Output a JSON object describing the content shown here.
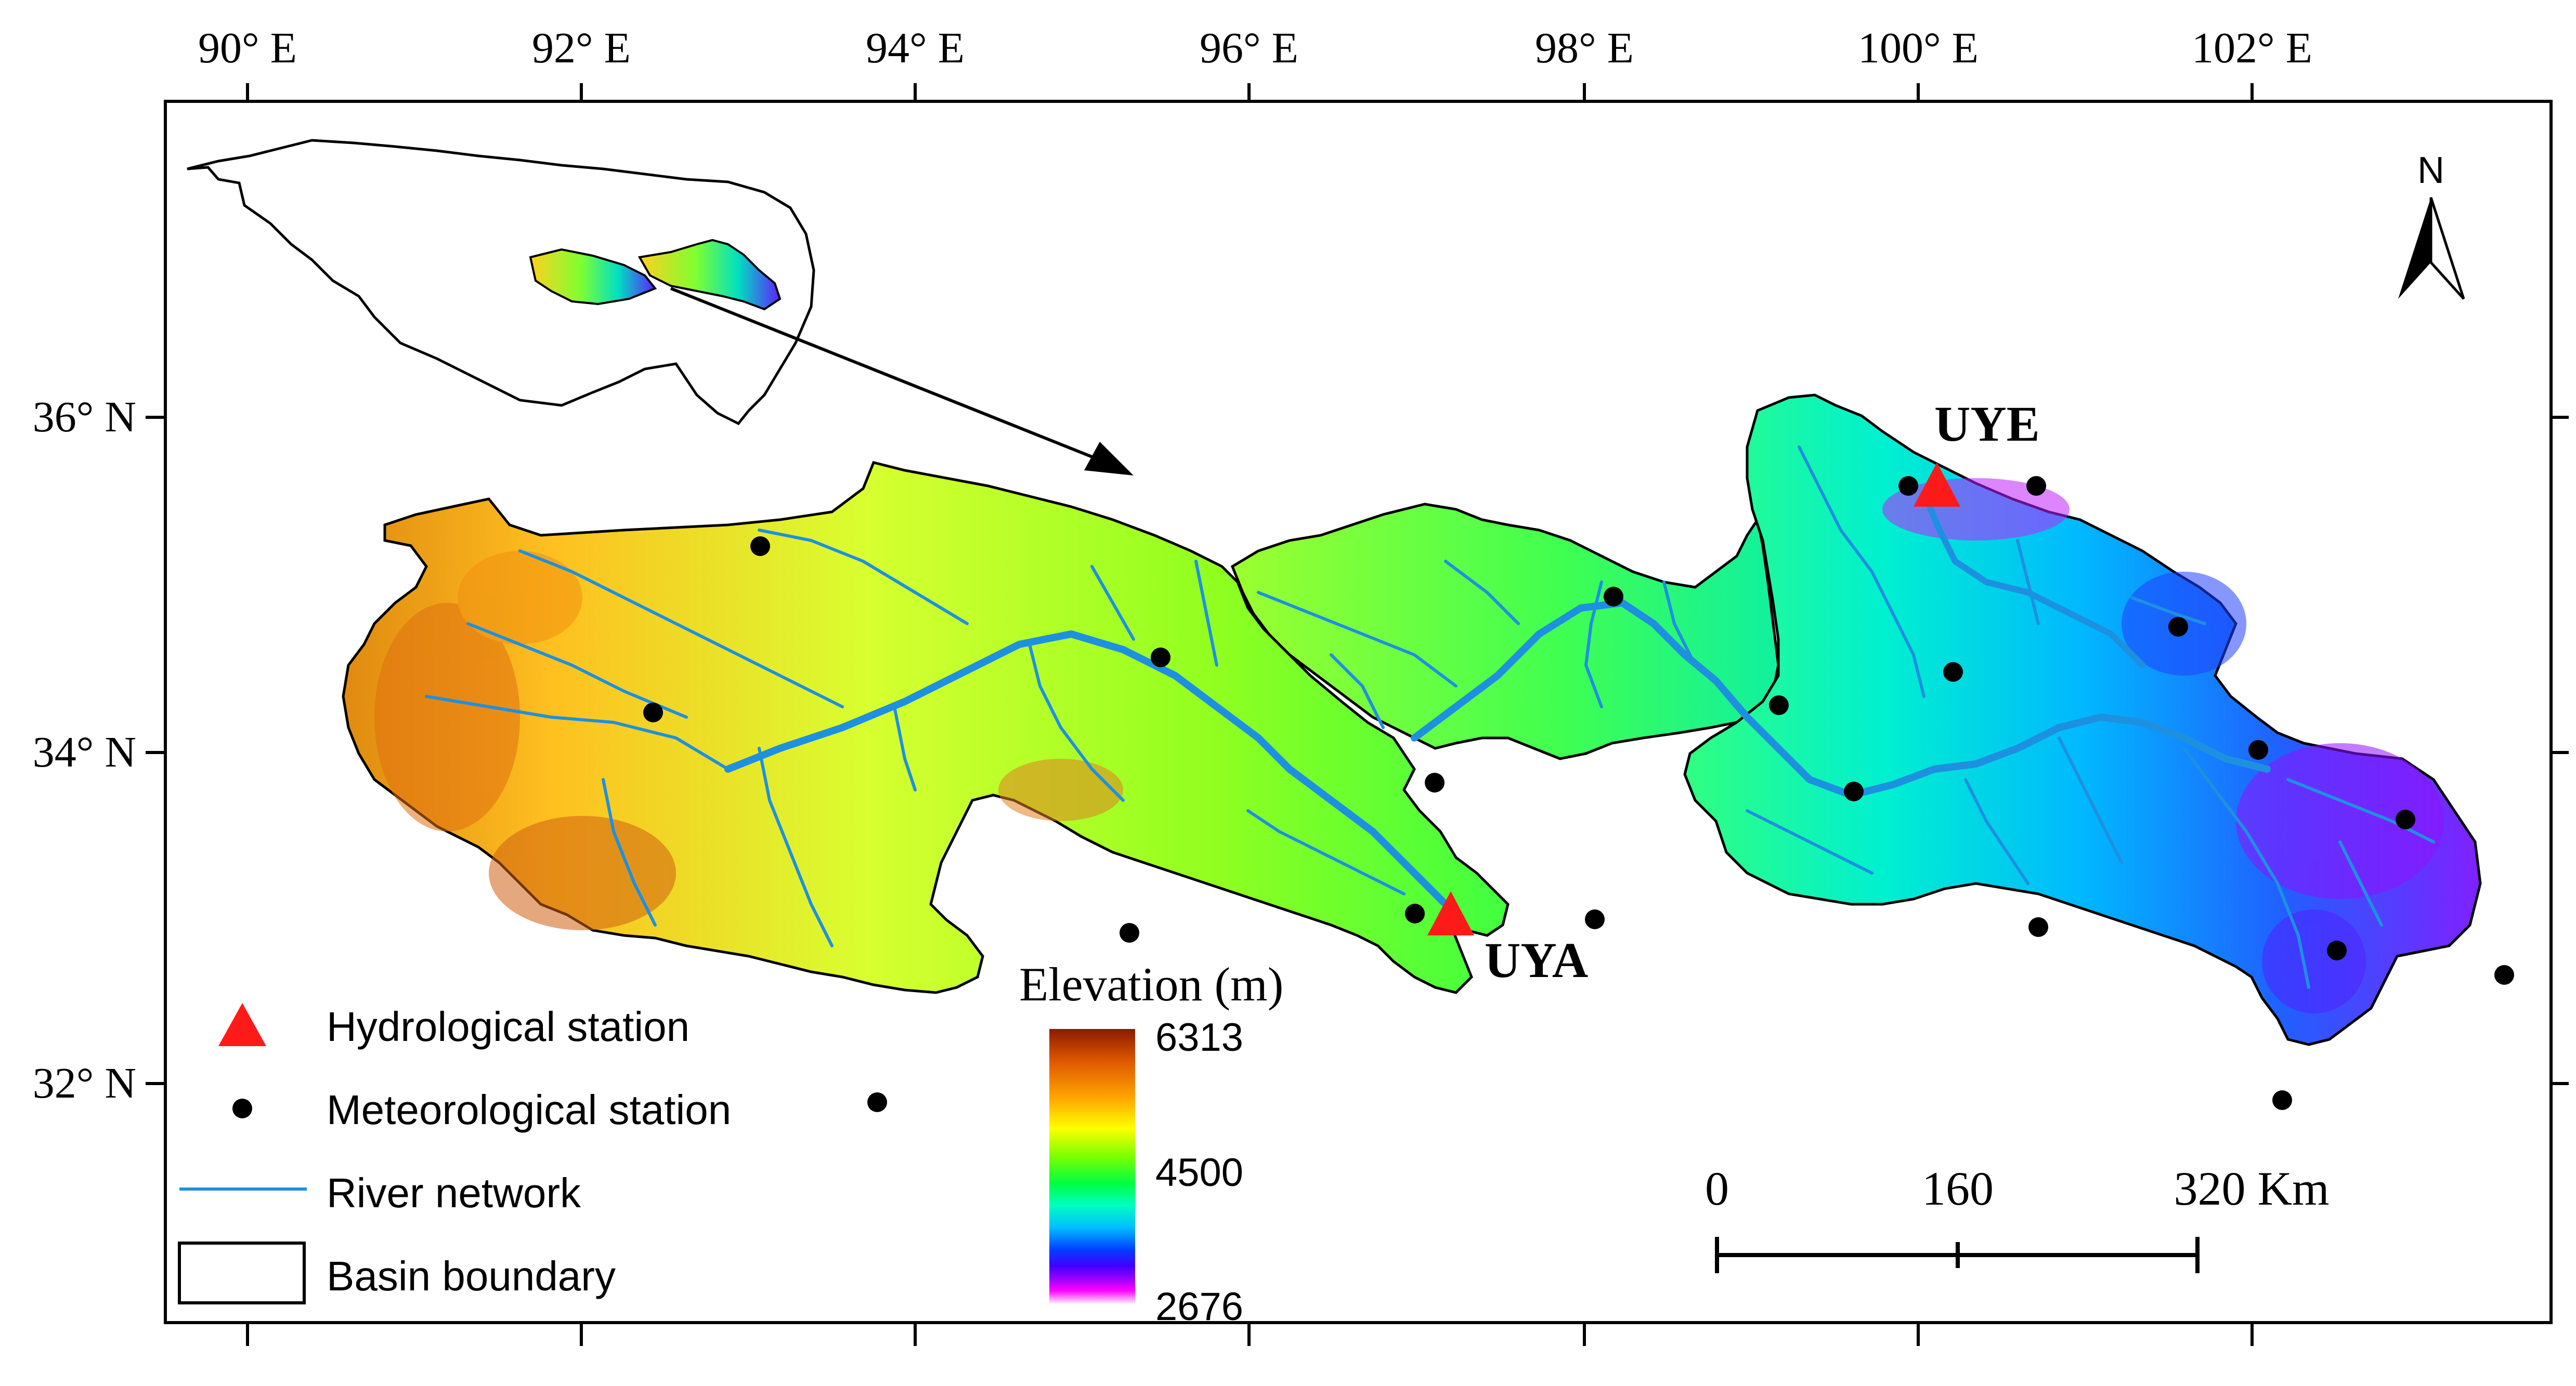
{
  "axes": {
    "lon_labels": [
      "90° E",
      "92° E",
      "94° E",
      "96° E",
      "98° E",
      "100° E",
      "102° E"
    ],
    "lat_labels": [
      "36° N",
      "34° N",
      "32° N"
    ]
  },
  "north_arrow": {
    "label": "N"
  },
  "stations": {
    "uye": "UYE",
    "uya": "UYA"
  },
  "colorbar": {
    "title": "Elevation (m)",
    "max": "6313",
    "mid": "4500",
    "min": "2676",
    "stops": [
      "#8b1a00",
      "#e05a00",
      "#ffa500",
      "#ffff00",
      "#7fff00",
      "#00ff40",
      "#00ffc0",
      "#00c0ff",
      "#0040ff",
      "#4000ff",
      "#a000ff",
      "#ff00ff",
      "#ffffff"
    ]
  },
  "legend": {
    "hydrological": "Hydrological station",
    "meteorological": "Meteorological station",
    "river": "River network",
    "boundary": "Basin boundary"
  },
  "scalebar": {
    "labels": [
      "0",
      "160",
      "320 Km"
    ]
  },
  "colors": {
    "triangle": "#ff1a1a",
    "river": "#1e90e0",
    "frame": "#000000"
  }
}
